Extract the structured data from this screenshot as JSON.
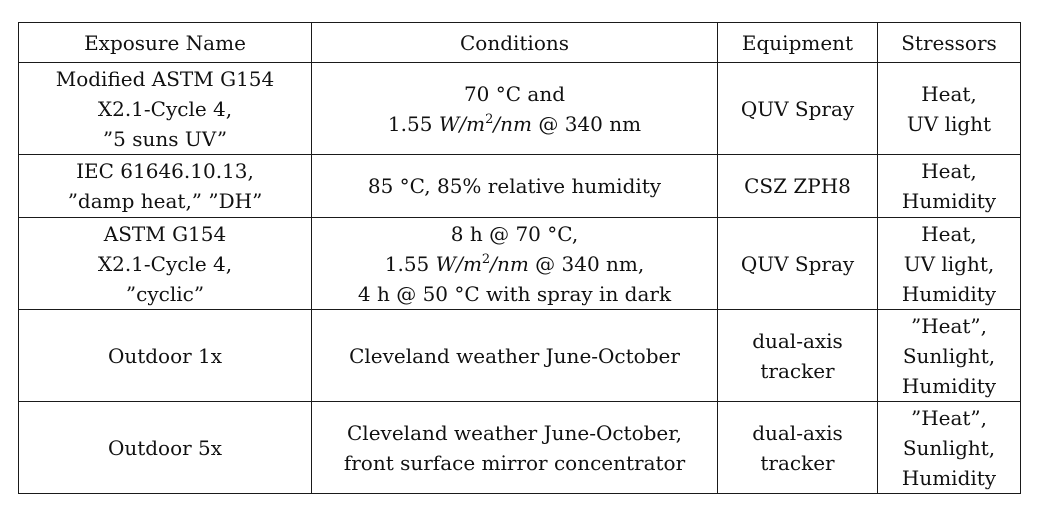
{
  "headers": [
    "Exposure Name",
    "Conditions",
    "Equipment",
    "Stressors"
  ],
  "rows": [
    {
      "name": [
        "Modified ASTM G154",
        "X2.1-Cycle 4,",
        "”5 suns UV”"
      ],
      "conditions": {
        "line1": "70 °C and",
        "line2_value": "1.55 ",
        "unit_w": "W",
        "unit_sep1": "/",
        "unit_m": "m",
        "unit_exp": "2",
        "unit_sep2": "/",
        "unit_nm": "nm",
        "line2_tail": " @ 340 nm"
      },
      "equipment": [
        "QUV Spray"
      ],
      "stressors": [
        "Heat,",
        "UV light"
      ]
    },
    {
      "name": [
        "IEC 61646.10.13,",
        "”damp heat,” ”DH”"
      ],
      "conditions_plain": [
        "85 °C, 85% relative humidity"
      ],
      "equipment": [
        "CSZ ZPH8"
      ],
      "stressors": [
        "Heat,",
        "Humidity"
      ]
    },
    {
      "name": [
        "ASTM G154",
        "X2.1-Cycle 4,",
        "”cyclic”"
      ],
      "conditions": {
        "line1": "8 h @ 70 °C,",
        "line2_value": "1.55 ",
        "unit_w": "W",
        "unit_sep1": "/",
        "unit_m": "m",
        "unit_exp": "2",
        "unit_sep2": "/",
        "unit_nm": "nm",
        "line2_tail": " @ 340 nm,",
        "line3": "4 h @ 50 °C with spray in dark"
      },
      "equipment": [
        "QUV Spray"
      ],
      "stressors": [
        "Heat,",
        "UV light,",
        "Humidity"
      ]
    },
    {
      "name": [
        "Outdoor 1x"
      ],
      "conditions_plain": [
        "Cleveland weather June-October"
      ],
      "equipment": [
        "dual-axis",
        "tracker"
      ],
      "stressors": [
        "”Heat”,",
        "Sunlight,",
        "Humidity"
      ]
    },
    {
      "name": [
        "Outdoor 5x"
      ],
      "conditions_plain": [
        "Cleveland weather June-October,",
        "front surface mirror concentrator"
      ],
      "equipment": [
        "dual-axis",
        "tracker"
      ],
      "stressors": [
        "”Heat”,",
        "Sunlight,",
        "Humidity"
      ]
    }
  ]
}
